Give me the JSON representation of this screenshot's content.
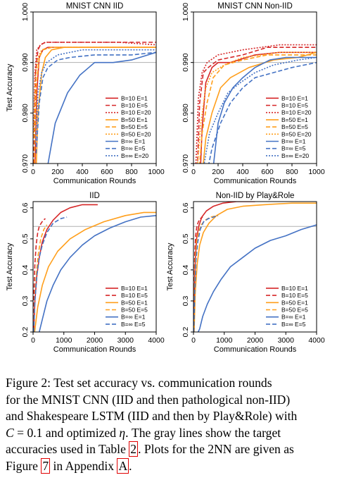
{
  "chart_data": [
    {
      "type": "line",
      "title": "MNIST CNN IID",
      "xlabel": "Communication Rounds",
      "ylabel": "Test Accuracy",
      "xlim": [
        0,
        1000
      ],
      "ylim": [
        0.97,
        1.0
      ],
      "xticks": [
        0,
        200,
        400,
        600,
        800,
        1000
      ],
      "yticks": [
        0.97,
        0.98,
        0.99,
        1.0
      ],
      "ytick_labels": [
        "0.970",
        "0.980",
        "0.990",
        "1.000"
      ],
      "target": 0.99,
      "legend_position": "bottom-right",
      "series": [
        {
          "name": "B=10  E=1",
          "color": "#d62728",
          "style": "solid",
          "x": [
            10,
            30,
            50,
            80,
            120,
            200,
            300,
            500,
            700,
            1000
          ],
          "y": [
            0.965,
            0.984,
            0.991,
            0.9925,
            0.993,
            0.993,
            0.993,
            0.993,
            0.993,
            0.993
          ]
        },
        {
          "name": "B=10  E=5",
          "color": "#d62728",
          "style": "dashed",
          "x": [
            5,
            20,
            40,
            60,
            100,
            200,
            400,
            700,
            1000
          ],
          "y": [
            0.97,
            0.988,
            0.9925,
            0.9935,
            0.994,
            0.994,
            0.994,
            0.994,
            0.994
          ]
        },
        {
          "name": "B=10  E=20",
          "color": "#d62728",
          "style": "dotted",
          "x": [
            5,
            15,
            30,
            60,
            100,
            200,
            400,
            700,
            1000
          ],
          "y": [
            0.975,
            0.988,
            0.9925,
            0.9935,
            0.994,
            0.994,
            0.994,
            0.994,
            0.9935
          ]
        },
        {
          "name": "B=50  E=1",
          "color": "#ff9f1c",
          "style": "solid",
          "x": [
            20,
            40,
            70,
            100,
            150,
            250,
            400,
            600,
            1000
          ],
          "y": [
            0.965,
            0.98,
            0.988,
            0.991,
            0.9925,
            0.993,
            0.993,
            0.993,
            0.993
          ]
        },
        {
          "name": "B=50  E=5",
          "color": "#ff9f1c",
          "style": "dashed",
          "x": [
            10,
            25,
            50,
            80,
            150,
            300,
            600,
            1000
          ],
          "y": [
            0.97,
            0.985,
            0.991,
            0.9925,
            0.993,
            0.993,
            0.993,
            0.993
          ]
        },
        {
          "name": "B=50  E=20",
          "color": "#ff9f1c",
          "style": "dotted",
          "x": [
            5,
            20,
            40,
            70,
            150,
            300,
            600,
            1000
          ],
          "y": [
            0.975,
            0.987,
            0.991,
            0.9925,
            0.993,
            0.993,
            0.993,
            0.993
          ]
        },
        {
          "name": "B=∞  E=1",
          "color": "#4472c4",
          "style": "solid",
          "x": [
            100,
            180,
            280,
            380,
            500,
            650,
            800,
            1000
          ],
          "y": [
            0.967,
            0.978,
            0.984,
            0.9875,
            0.99,
            0.99,
            0.9905,
            0.992
          ]
        },
        {
          "name": "B=∞  E=5",
          "color": "#4472c4",
          "style": "dashed",
          "x": [
            25,
            50,
            80,
            120,
            200,
            300,
            500,
            800,
            1000
          ],
          "y": [
            0.972,
            0.982,
            0.987,
            0.989,
            0.9905,
            0.991,
            0.9915,
            0.9915,
            0.992
          ]
        },
        {
          "name": "B=∞  E=20",
          "color": "#4472c4",
          "style": "dotted",
          "x": [
            20,
            40,
            70,
            110,
            200,
            400,
            700,
            1000
          ],
          "y": [
            0.974,
            0.984,
            0.988,
            0.99,
            0.9915,
            0.9925,
            0.9925,
            0.9925
          ]
        }
      ]
    },
    {
      "type": "line",
      "title": "MNIST CNN Non-IID",
      "xlabel": "Communication Rounds",
      "ylabel": "",
      "xlim": [
        0,
        1000
      ],
      "ylim": [
        0.97,
        1.0
      ],
      "xticks": [
        0,
        200,
        400,
        600,
        800,
        1000
      ],
      "yticks": [
        0.97,
        0.98,
        0.99,
        1.0
      ],
      "ytick_labels": [
        "0.970",
        "0.980",
        "0.990",
        "1.000"
      ],
      "target": 0.99,
      "legend_position": "bottom-right",
      "series": [
        {
          "name": "B=10  E=1",
          "color": "#d62728",
          "style": "solid",
          "x": [
            50,
            70,
            100,
            150,
            200,
            300,
            500,
            700,
            1000
          ],
          "y": [
            0.965,
            0.977,
            0.986,
            0.989,
            0.99,
            0.99,
            0.9915,
            0.992,
            0.992
          ]
        },
        {
          "name": "B=10  E=5",
          "color": "#d62728",
          "style": "dashed",
          "x": [
            30,
            50,
            80,
            120,
            200,
            400,
            600,
            800,
            1000
          ],
          "y": [
            0.968,
            0.982,
            0.988,
            0.989,
            0.9905,
            0.9915,
            0.993,
            0.993,
            0.993
          ]
        },
        {
          "name": "B=10  E=20",
          "color": "#d62728",
          "style": "dotted",
          "x": [
            20,
            40,
            70,
            110,
            200,
            400,
            700,
            1000
          ],
          "y": [
            0.97,
            0.983,
            0.988,
            0.99,
            0.9915,
            0.9925,
            0.9935,
            0.9935
          ]
        },
        {
          "name": "B=50  E=1",
          "color": "#ff9f1c",
          "style": "solid",
          "x": [
            60,
            100,
            150,
            220,
            300,
            450,
            650,
            850,
            1000
          ],
          "y": [
            0.965,
            0.975,
            0.98,
            0.985,
            0.987,
            0.989,
            0.9905,
            0.991,
            0.992
          ]
        },
        {
          "name": "B=50  E=5",
          "color": "#ff9f1c",
          "style": "dashed",
          "x": [
            40,
            70,
            110,
            160,
            250,
            400,
            600,
            1000
          ],
          "y": [
            0.967,
            0.976,
            0.982,
            0.987,
            0.9895,
            0.9905,
            0.9915,
            0.9915
          ]
        },
        {
          "name": "B=50  E=20",
          "color": "#ff9f1c",
          "style": "dotted",
          "x": [
            30,
            60,
            100,
            150,
            250,
            400,
            700,
            1000
          ],
          "y": [
            0.969,
            0.978,
            0.985,
            0.988,
            0.9895,
            0.991,
            0.992,
            0.992
          ]
        },
        {
          "name": "B=∞  E=1",
          "color": "#4472c4",
          "style": "solid",
          "x": [
            150,
            200,
            250,
            320,
            400,
            500,
            620,
            750,
            900,
            1000
          ],
          "y": [
            0.967,
            0.978,
            0.982,
            0.985,
            0.987,
            0.989,
            0.9905,
            0.991,
            0.991,
            0.991
          ]
        },
        {
          "name": "B=∞  E=5",
          "color": "#4472c4",
          "style": "dashed",
          "x": [
            100,
            150,
            220,
            300,
            400,
            500,
            650,
            800,
            1000
          ],
          "y": [
            0.967,
            0.973,
            0.978,
            0.982,
            0.985,
            0.987,
            0.988,
            0.989,
            0.99
          ]
        },
        {
          "name": "B=∞  E=20",
          "color": "#4472c4",
          "style": "dotted",
          "x": [
            80,
            130,
            200,
            280,
            380,
            500,
            650,
            850,
            1000
          ],
          "y": [
            0.969,
            0.976,
            0.98,
            0.984,
            0.986,
            0.988,
            0.9895,
            0.9905,
            0.991
          ]
        }
      ]
    },
    {
      "type": "line",
      "title": "IID",
      "xlabel": "Communication Rounds",
      "ylabel": "Test Accuracy",
      "xlim": [
        0,
        4000
      ],
      "ylim": [
        0.2,
        0.62
      ],
      "xticks": [
        0,
        1000,
        2000,
        3000,
        4000
      ],
      "yticks": [
        0.2,
        0.3,
        0.4,
        0.5,
        0.6
      ],
      "ytick_labels": [
        "0.2",
        "0.3",
        "0.4",
        "0.5",
        "0.6"
      ],
      "target": 0.54,
      "legend_position": "bottom-right",
      "series": [
        {
          "name": "B=10  E=1",
          "color": "#d62728",
          "style": "solid",
          "x": [
            20,
            60,
            120,
            200,
            300,
            450,
            650,
            900,
            1200,
            1600,
            2100
          ],
          "y": [
            0.2,
            0.3,
            0.38,
            0.44,
            0.49,
            0.53,
            0.56,
            0.585,
            0.6,
            0.61,
            0.61
          ]
        },
        {
          "name": "B=10  E=5",
          "color": "#d62728",
          "style": "dashed",
          "x": [
            10,
            30,
            60,
            100,
            150,
            200,
            260,
            330,
            400
          ],
          "y": [
            0.2,
            0.33,
            0.42,
            0.48,
            0.52,
            0.54,
            0.55,
            0.56,
            0.565
          ]
        },
        {
          "name": "B=50  E=1",
          "color": "#ff9f1c",
          "style": "solid",
          "x": [
            50,
            150,
            300,
            500,
            800,
            1200,
            1700,
            2300,
            3000,
            3600,
            4000
          ],
          "y": [
            0.2,
            0.28,
            0.35,
            0.41,
            0.46,
            0.5,
            0.53,
            0.555,
            0.575,
            0.585,
            0.585
          ]
        },
        {
          "name": "B=50  E=5",
          "color": "#ff9f1c",
          "style": "dashed",
          "x": [
            20,
            50,
            100,
            170,
            250,
            350,
            450
          ],
          "y": [
            0.2,
            0.3,
            0.38,
            0.45,
            0.5,
            0.53,
            0.545
          ]
        },
        {
          "name": "B=∞  E=1",
          "color": "#4472c4",
          "style": "solid",
          "x": [
            0,
            100,
            200,
            300,
            450,
            650,
            900,
            1200,
            1600,
            2000,
            2500,
            3000,
            3500,
            4000
          ],
          "y": [
            0.19,
            0.19,
            0.2,
            0.24,
            0.3,
            0.35,
            0.4,
            0.44,
            0.48,
            0.51,
            0.535,
            0.555,
            0.57,
            0.575
          ]
        },
        {
          "name": "B=∞  E=5",
          "color": "#4472c4",
          "style": "dashed",
          "x": [
            20,
            60,
            120,
            200,
            300,
            450,
            650,
            900,
            1100
          ],
          "y": [
            0.2,
            0.3,
            0.38,
            0.44,
            0.48,
            0.52,
            0.55,
            0.565,
            0.57
          ]
        }
      ]
    },
    {
      "type": "line",
      "title": "Non-IID by Play&Role",
      "xlabel": "Communication Rounds",
      "ylabel": "Test Accuracy",
      "xlim": [
        0,
        4000
      ],
      "ylim": [
        0.2,
        0.62
      ],
      "xticks": [
        0,
        1000,
        2000,
        3000,
        4000
      ],
      "yticks": [
        0.2,
        0.3,
        0.4,
        0.5,
        0.6
      ],
      "ytick_labels": [
        "0.2",
        "0.3",
        "0.4",
        "0.5",
        "0.6"
      ],
      "target": 0.54,
      "legend_position": "bottom-right",
      "series": [
        {
          "name": "B=10  E=1",
          "color": "#d62728",
          "style": "solid",
          "x": [
            10,
            30,
            60,
            100,
            170,
            270,
            420,
            650,
            950,
            1400,
            2000
          ],
          "y": [
            0.2,
            0.33,
            0.43,
            0.5,
            0.54,
            0.57,
            0.59,
            0.605,
            0.615,
            0.62,
            0.62
          ]
        },
        {
          "name": "B=10  E=5",
          "color": "#d62728",
          "style": "dashed",
          "x": [
            5,
            20,
            40,
            70,
            110,
            160,
            220,
            300
          ],
          "y": [
            0.2,
            0.35,
            0.45,
            0.51,
            0.54,
            0.555,
            0.565,
            0.57
          ]
        },
        {
          "name": "B=50  E=1",
          "color": "#ff9f1c",
          "style": "solid",
          "x": [
            20,
            60,
            120,
            200,
            320,
            500,
            750,
            1100,
            1600,
            2300,
            3200,
            4000
          ],
          "y": [
            0.2,
            0.33,
            0.42,
            0.48,
            0.52,
            0.55,
            0.575,
            0.595,
            0.605,
            0.61,
            0.615,
            0.615
          ]
        },
        {
          "name": "B=50  E=5",
          "color": "#ff9f1c",
          "style": "dashed",
          "x": [
            10,
            30,
            60,
            100,
            160,
            250,
            380,
            550,
            800
          ],
          "y": [
            0.2,
            0.33,
            0.43,
            0.49,
            0.52,
            0.545,
            0.56,
            0.57,
            0.575
          ]
        },
        {
          "name": "B=∞  E=1",
          "color": "#4472c4",
          "style": "solid",
          "x": [
            0,
            100,
            200,
            300,
            450,
            650,
            900,
            1200,
            1600,
            2000,
            2500,
            3000,
            3500,
            4000
          ],
          "y": [
            0.18,
            0.19,
            0.21,
            0.25,
            0.29,
            0.33,
            0.37,
            0.41,
            0.44,
            0.47,
            0.495,
            0.51,
            0.53,
            0.545
          ]
        },
        {
          "name": "B=∞  E=5",
          "color": "#4472c4",
          "style": "dashed",
          "x": [
            10,
            40,
            80,
            140,
            220,
            330,
            480,
            650,
            800
          ],
          "y": [
            0.2,
            0.33,
            0.43,
            0.49,
            0.53,
            0.555,
            0.565,
            0.57,
            0.575
          ]
        }
      ]
    }
  ],
  "caption": {
    "line1": "Figure 2: Test set accuracy vs. communication rounds",
    "line2": "for the MNIST CNN (IID and then pathological non-IID)",
    "line3": "and Shakespeare LSTM (IID and then by Play&Role) with",
    "line4_a": "C",
    "line4_b": " = 0.1 and optimized ",
    "line4_c": "η",
    "line4_d": ". The gray lines show the target",
    "line5_a": "accuracies used in Table ",
    "line5_ref": "2",
    "line5_b": ". Plots for the 2NN are given as",
    "line6_a": "Figure ",
    "line6_ref1": "7",
    "line6_b": " in Appendix ",
    "line6_ref2": "A",
    "line6_c": "."
  }
}
